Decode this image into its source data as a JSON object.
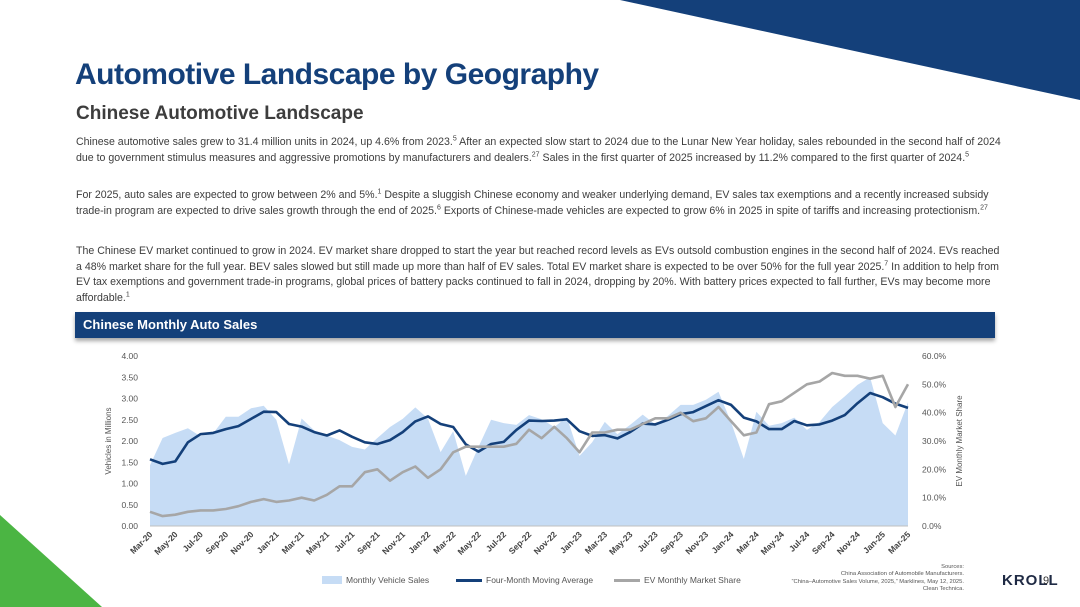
{
  "header": {
    "title": "Automotive Landscape by Geography",
    "subtitle": "Chinese Automotive Landscape"
  },
  "paragraphs": {
    "p1": {
      "t1": "Chinese automotive sales grew to 31.4 million units in 2024, up 4.6% from 2023.",
      "s1": "5",
      "t2": " After an expected slow start to 2024 due to the Lunar New Year holiday, sales rebounded in the second half of 2024 due to government stimulus measures and aggressive promotions by manufacturers and dealers.",
      "s2": "27",
      "t3": " Sales in the first quarter of 2025 increased by 11.2% compared to the first quarter of 2024.",
      "s3": "5"
    },
    "p2": {
      "t1": "For 2025, auto sales are expected to grow between 2% and 5%.",
      "s1": "1",
      "t2": " Despite a sluggish Chinese economy and weaker underlying demand, EV sales tax exemptions and a recently increased subsidy trade-in program are expected to drive sales growth through the end of 2025.",
      "s2": "6",
      "t3": " Exports of Chinese-made vehicles are expected to grow 6% in 2025 in spite of tariffs and increasing protectionism.",
      "s3": "27"
    },
    "p3": {
      "t1": "The Chinese EV market continued to grow in 2024. EV market share dropped to start the year but reached record levels as EVs outsold combustion engines in the second half of 2024. EVs reached a 48% market share for the full year. BEV sales slowed but still made up more than half of EV sales. Total EV market share is expected to be over 50% for the full year 2025.",
      "s1": "7",
      "t2": " In addition to help from EV tax exemptions and government trade-in programs, global prices of battery packs continued to fall in 2024, dropping by 20%. With battery prices expected to fall further, EVs may become more affordable.",
      "s2": "1"
    }
  },
  "banner": {
    "label": "Chinese Monthly Auto Sales"
  },
  "chart_data": {
    "type": "line",
    "title": "Chinese Monthly Auto Sales",
    "ylabel": "Vehicles in Millions",
    "y2label": "EV Monthly Market Share",
    "ylim": [
      0,
      4
    ],
    "y2lim": [
      0,
      60
    ],
    "y_ticks": [
      "0.00",
      "0.50",
      "1.00",
      "1.50",
      "2.00",
      "2.50",
      "3.00",
      "3.50",
      "4.00"
    ],
    "y2_ticks": [
      "0.0%",
      "10.0%",
      "20.0%",
      "30.0%",
      "40.0%",
      "50.0%",
      "60.0%"
    ],
    "x_tick_labels": [
      "Mar-20",
      "May-20",
      "Jul-20",
      "Sep-20",
      "Nov-20",
      "Jan-21",
      "Mar-21",
      "May-21",
      "Jul-21",
      "Sep-21",
      "Nov-21",
      "Jan-22",
      "Mar-22",
      "May-22",
      "Jul-22",
      "Sep-22",
      "Nov-22",
      "Jan-23",
      "Mar-23",
      "May-23",
      "Jul-23",
      "Sep-23",
      "Nov-23",
      "Jan-24",
      "Mar-24",
      "May-24",
      "Jul-24",
      "Sep-24",
      "Nov-24",
      "Jan-25",
      "Mar-25"
    ],
    "categories": [
      "Mar-20",
      "Apr-20",
      "May-20",
      "Jun-20",
      "Jul-20",
      "Aug-20",
      "Sep-20",
      "Oct-20",
      "Nov-20",
      "Dec-20",
      "Jan-21",
      "Feb-21",
      "Mar-21",
      "Apr-21",
      "May-21",
      "Jun-21",
      "Jul-21",
      "Aug-21",
      "Sep-21",
      "Oct-21",
      "Nov-21",
      "Dec-21",
      "Jan-22",
      "Feb-22",
      "Mar-22",
      "Apr-22",
      "May-22",
      "Jun-22",
      "Jul-22",
      "Aug-22",
      "Sep-22",
      "Oct-22",
      "Nov-22",
      "Dec-22",
      "Jan-23",
      "Feb-23",
      "Mar-23",
      "Apr-23",
      "May-23",
      "Jun-23",
      "Jul-23",
      "Aug-23",
      "Sep-23",
      "Oct-23",
      "Nov-23",
      "Dec-23",
      "Jan-24",
      "Feb-24",
      "Mar-24",
      "Apr-24",
      "May-24",
      "Jun-24",
      "Jul-24",
      "Aug-24",
      "Sep-24",
      "Oct-24",
      "Nov-24",
      "Dec-24",
      "Jan-25",
      "Feb-25",
      "Mar-25"
    ],
    "series": [
      {
        "name": "Monthly Vehicle Sales",
        "kind": "area",
        "axis": "left",
        "color": "#c6dcf5",
        "values": [
          1.43,
          2.07,
          2.19,
          2.3,
          2.11,
          2.18,
          2.57,
          2.57,
          2.77,
          2.83,
          2.5,
          1.45,
          2.53,
          2.25,
          2.13,
          2.02,
          1.86,
          1.8,
          2.07,
          2.33,
          2.52,
          2.79,
          2.53,
          1.74,
          2.23,
          1.18,
          1.86,
          2.5,
          2.42,
          2.38,
          2.61,
          2.51,
          2.33,
          2.56,
          1.65,
          1.97,
          2.45,
          2.16,
          2.38,
          2.62,
          2.39,
          2.59,
          2.85,
          2.85,
          2.97,
          3.16,
          2.44,
          1.58,
          2.69,
          2.36,
          2.42,
          2.55,
          2.26,
          2.45,
          2.8,
          3.05,
          3.32,
          3.5,
          2.42,
          2.13,
          2.91
        ]
      },
      {
        "name": "Four-Month Moving Average",
        "kind": "line",
        "axis": "left",
        "color": "#14407a",
        "values": [
          1.57,
          1.46,
          1.52,
          1.97,
          2.16,
          2.19,
          2.28,
          2.35,
          2.52,
          2.69,
          2.68,
          2.4,
          2.34,
          2.21,
          2.13,
          2.25,
          2.1,
          1.97,
          1.93,
          2.02,
          2.21,
          2.46,
          2.58,
          2.4,
          2.33,
          1.92,
          1.75,
          1.93,
          1.98,
          2.26,
          2.48,
          2.47,
          2.48,
          2.51,
          2.23,
          2.12,
          2.14,
          2.06,
          2.21,
          2.41,
          2.39,
          2.5,
          2.63,
          2.68,
          2.82,
          2.96,
          2.85,
          2.55,
          2.46,
          2.28,
          2.28,
          2.47,
          2.37,
          2.39,
          2.48,
          2.61,
          2.89,
          3.13,
          3.03,
          2.88,
          2.78
        ]
      },
      {
        "name": "EV Monthly Market Share",
        "kind": "line",
        "axis": "right",
        "color": "#a6a6a6",
        "values": [
          5.0,
          3.5,
          4.0,
          5.0,
          5.5,
          5.5,
          6.0,
          7.0,
          8.5,
          9.5,
          8.5,
          9.0,
          10.0,
          9.0,
          11.0,
          14.0,
          14.0,
          19.0,
          20.0,
          16.0,
          19.0,
          21.0,
          17.0,
          20.0,
          26.0,
          28.0,
          28.0,
          28.0,
          28.0,
          29.0,
          34.0,
          31.0,
          35.0,
          31.0,
          26.0,
          33.0,
          33.0,
          34.0,
          34.0,
          36.0,
          38.0,
          38.0,
          40.0,
          37.0,
          38.0,
          42.0,
          37.0,
          32.0,
          33.0,
          43.0,
          44.0,
          47.0,
          50.0,
          51.0,
          54.0,
          53.0,
          53.0,
          52.0,
          53.0,
          42.0,
          50.0
        ]
      }
    ],
    "legend": [
      "Monthly Vehicle Sales",
      "Four-Month Moving Average",
      "EV Monthly Market Share"
    ]
  },
  "footer": {
    "sources_lines": [
      "Sources:",
      "China Association of Automobile Manufacturers.",
      "“China–Automotive Sales Volume, 2025,” Marklines, May 12, 2025.",
      "Clean Technica."
    ],
    "logo_text": "KROLL",
    "page_number": "9"
  },
  "colors": {
    "brand_navy": "#14407a",
    "accent_green": "#4bb543",
    "area_fill": "#c6dcf5",
    "ev_line": "#a6a6a6"
  }
}
